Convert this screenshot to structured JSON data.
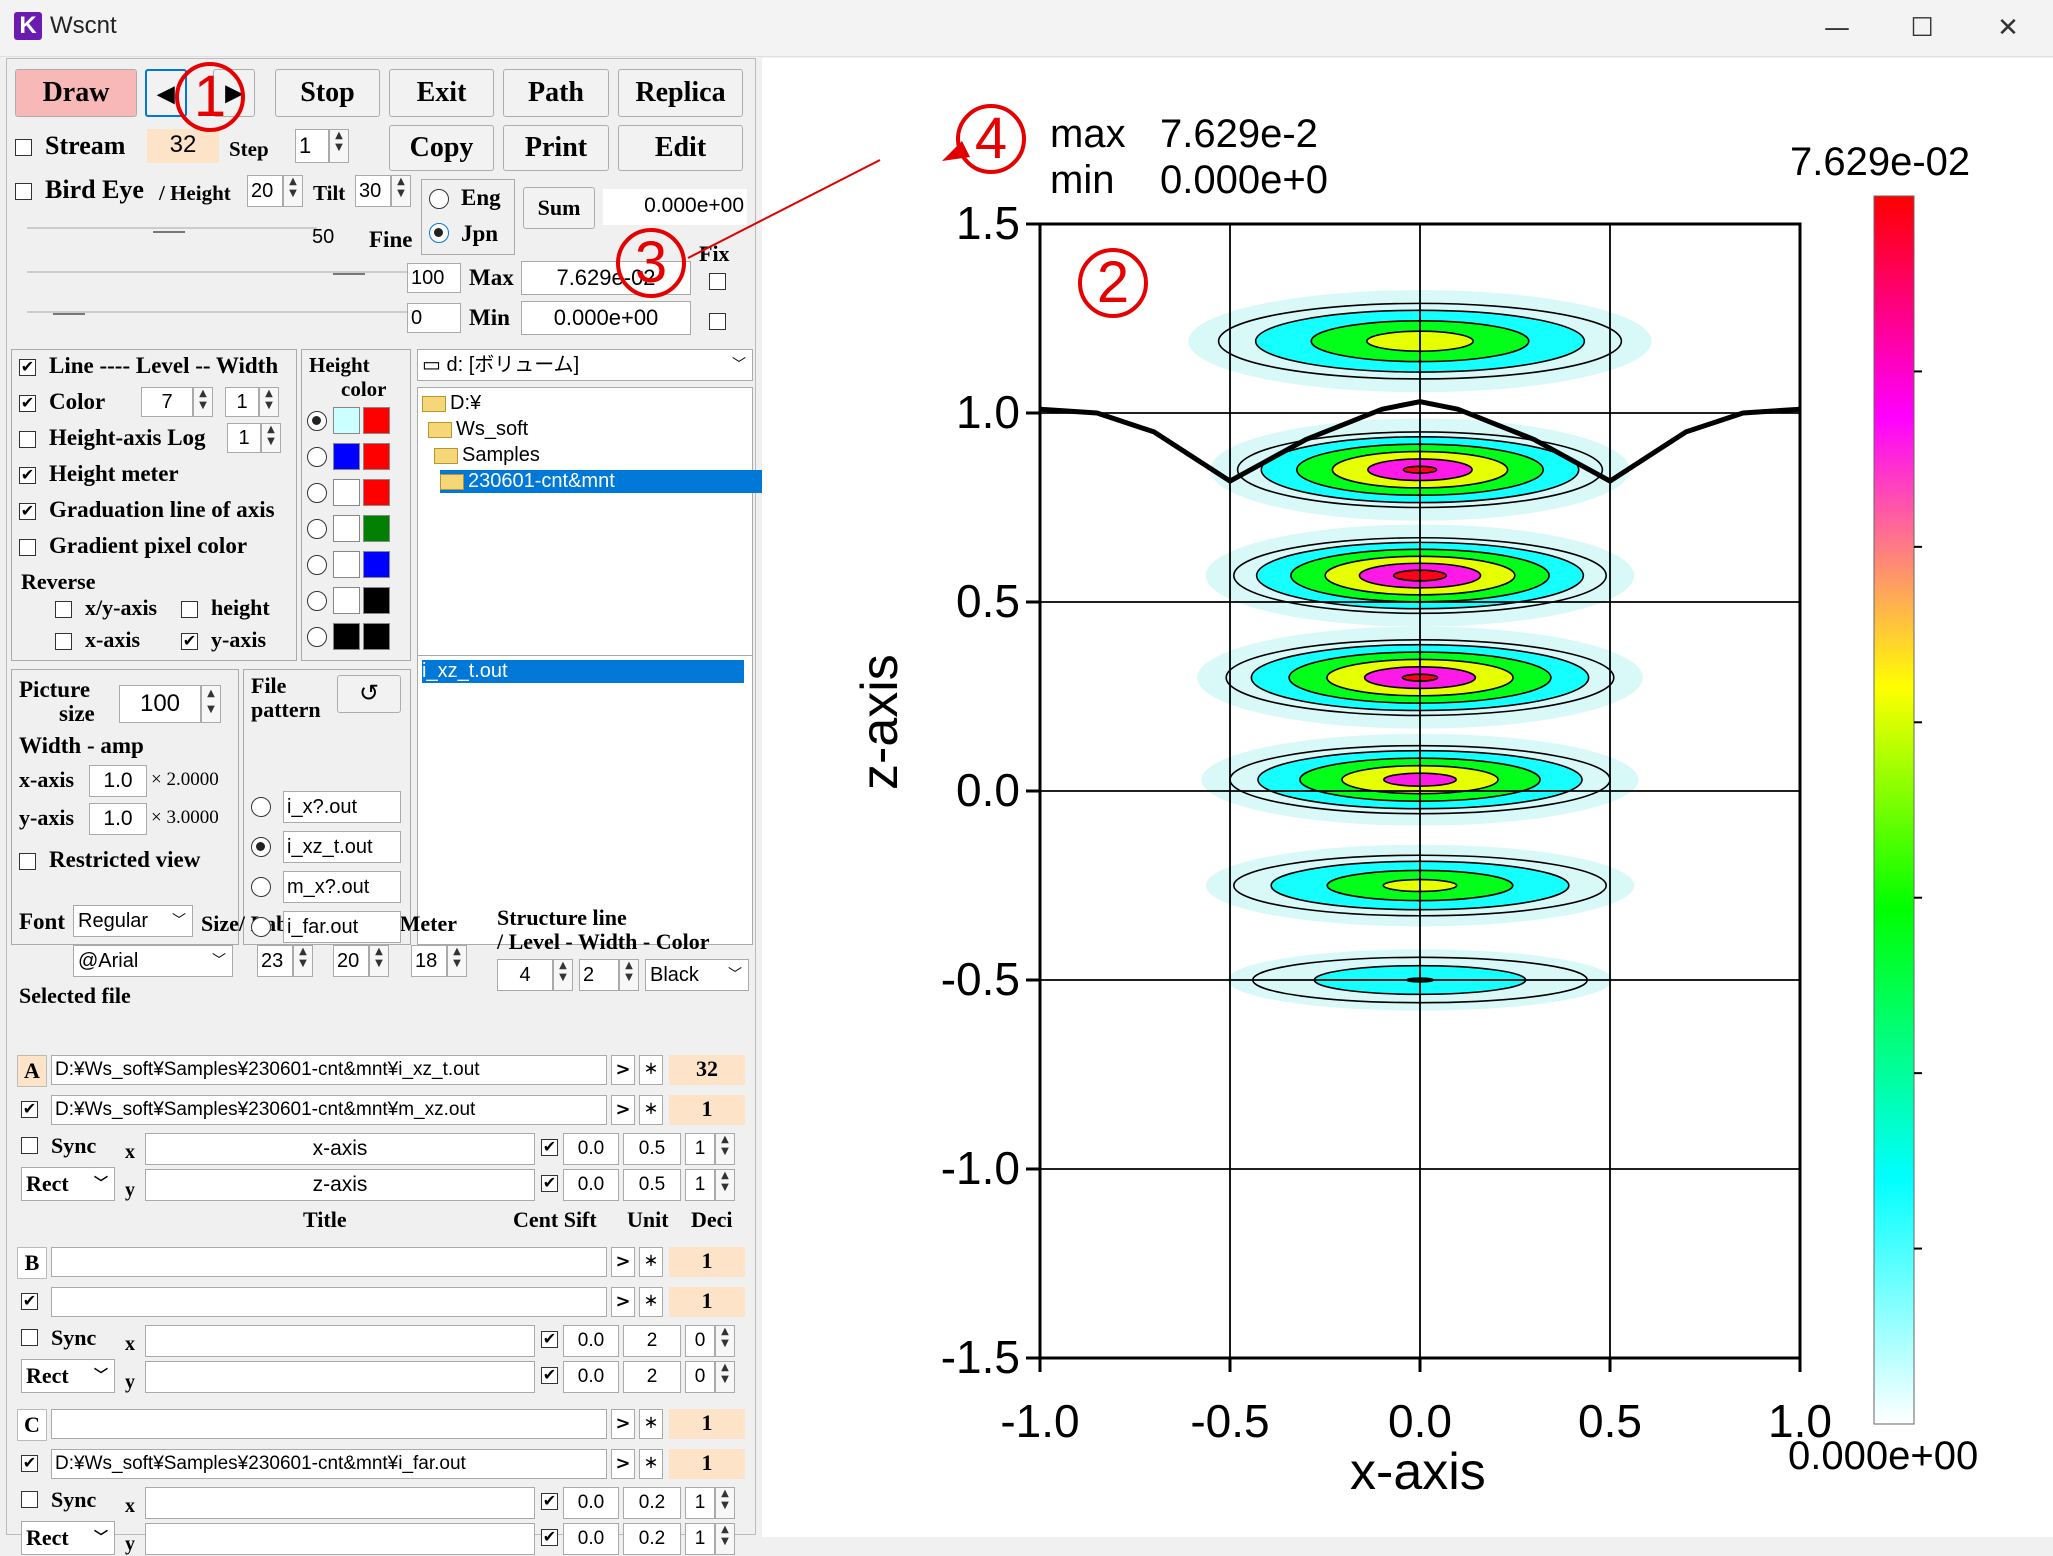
{
  "window": {
    "title": "Wscnt",
    "min": "—",
    "max": "☐",
    "close": "✕"
  },
  "toolbar": {
    "draw": "Draw",
    "prev": "◀",
    "next": "▶",
    "stop": "Stop",
    "exit": "Exit",
    "path": "Path",
    "replica": "Replica",
    "copy": "Copy",
    "print": "Print",
    "edit": "Edit",
    "play": "▶"
  },
  "controls": {
    "stream_label": "Stream",
    "stream_value": "32",
    "step_label": "Step",
    "step_value": "1",
    "birdeye_label": "Bird Eye",
    "height_label": "/ Height",
    "height_value": "20",
    "tilt_label": "Tilt",
    "tilt_value": "30",
    "eng": "Eng",
    "jpn": "Jpn",
    "sum_label": "Sum",
    "sum_value": "0.000e+00",
    "fine_value": "50",
    "fine_label": "Fine",
    "fix_label": "Fix",
    "max_num": "100",
    "max_label": "Max",
    "max_value": "7.629e-02",
    "min_num": "0",
    "min_label": "Min",
    "min_value": "0.000e+00"
  },
  "options": {
    "line": "Line ---- Level -- Width",
    "color": "Color",
    "color_level": "7",
    "color_width": "1",
    "height_log": "Height-axis Log",
    "height_log_value": "1",
    "height_meter": "Height meter",
    "graduation": "Graduation line of axis",
    "gradient": "Gradient pixel color",
    "reverse": "Reverse",
    "xy_axis": "x/y-axis",
    "height": "height",
    "x_axis": "x-axis",
    "y_axis": "y-axis",
    "height_color_title": "Height",
    "height_color_sub": "color"
  },
  "swatches": [
    {
      "a": "#ccffff",
      "b": "#ff0000"
    },
    {
      "a": "#0000ff",
      "b": "#ff0000"
    },
    {
      "a": "#ffffff",
      "b": "#ff0000"
    },
    {
      "a": "#ffffff",
      "b": "#008000"
    },
    {
      "a": "#ffffff",
      "b": "#0000ff"
    },
    {
      "a": "#ffffff",
      "b": "#000000"
    },
    {
      "a": "#000000",
      "b": "#000000"
    }
  ],
  "drive": "d: [ボリューム]",
  "folders": [
    "D:¥",
    "Ws_soft",
    "Samples",
    "230601-cnt&mnt"
  ],
  "files": [
    "i_xz_t.out"
  ],
  "picture": {
    "size_label": "Picture",
    "size_label2": "size",
    "size_value": "100",
    "width_amp": "Width - amp",
    "x_label": "x-axis",
    "x_value": "1.0",
    "x_mult": "× 2.0000",
    "y_label": "y-axis",
    "y_value": "1.0",
    "y_mult": "× 3.0000",
    "restricted": "Restricted view"
  },
  "pattern": {
    "label": "File",
    "label2": "pattern",
    "refresh": "↺",
    "items": [
      "i_x?.out",
      "i_xz_t.out",
      "m_x?.out",
      "i_far.out"
    ]
  },
  "font": {
    "label": "Font",
    "style": "Regular",
    "face": "@Arial",
    "size_label": "Size/ Label - Numb - Meter",
    "label_size": "23",
    "numb_size": "20",
    "meter_size": "18",
    "struct_label": "Structure line",
    "struct_label2": "/ Level - Width - Color",
    "level": "4",
    "width": "2",
    "color": "Black"
  },
  "selected": {
    "label": "Selected file",
    "title_hdr": "Title",
    "cent_sift": "Cent Sift",
    "unit": "Unit",
    "deci": "Deci"
  },
  "groups": [
    {
      "letter": "A",
      "file1": "D:¥Ws_soft¥Samples¥230601-cnt&mnt¥i_xz_t.out",
      "num1": "32",
      "file2": "D:¥Ws_soft¥Samples¥230601-cnt&mnt¥m_xz.out",
      "num2": "1",
      "sync": "Sync",
      "rect": "Rect",
      "x": "x",
      "y": "y",
      "xt": "x-axis",
      "yt": "z-axis",
      "xc": "0.0",
      "xu": "0.5",
      "xd": "1",
      "yc": "0.0",
      "yu": "0.5",
      "yd": "1"
    },
    {
      "letter": "B",
      "file1": "",
      "num1": "1",
      "file2": "",
      "num2": "1",
      "sync": "Sync",
      "rect": "Rect",
      "x": "x",
      "y": "y",
      "xt": "",
      "yt": "",
      "xc": "0.0",
      "xu": "2",
      "xd": "0",
      "yc": "0.0",
      "yu": "2",
      "yd": "0"
    },
    {
      "letter": "C",
      "file1": "",
      "num1": "1",
      "file2": "D:¥Ws_soft¥Samples¥230601-cnt&mnt¥i_far.out",
      "num2": "1",
      "sync": "Sync",
      "rect": "Rect",
      "x": "x",
      "y": "y",
      "xt": "",
      "yt": "",
      "xc": "0.0",
      "xu": "0.2",
      "xd": "1",
      "yc": "0.0",
      "yu": "0.2",
      "yd": "1"
    }
  ],
  "gt": ">",
  "star": "＊",
  "plot": {
    "max_label": "max",
    "max_value": "7.629e-2",
    "min_label": "min",
    "min_value": "0.000e+0",
    "xlabel": "x-axis",
    "ylabel": "z-axis",
    "colorbar_top": "7.629e-02",
    "colorbar_bottom": "0.000e+00",
    "xticks": [
      "-1.0",
      "-0.5",
      "0.0",
      "0.5",
      "1.0"
    ],
    "yticks": [
      "1.5",
      "1.0",
      "0.5",
      "0.0",
      "-0.5",
      "-1.0",
      "-1.5"
    ]
  },
  "markers": [
    "1",
    "2",
    "3",
    "4"
  ],
  "chart_data": {
    "type": "heatmap",
    "xlabel": "x-axis",
    "ylabel": "z-axis",
    "xlim": [
      -1.0,
      1.0
    ],
    "ylim": [
      -1.5,
      1.5
    ],
    "grid": true,
    "colorbar": {
      "min": 0.0,
      "max": 0.07629,
      "colors": [
        "#ffffff",
        "#00ffff",
        "#00ff00",
        "#ffff00",
        "#ff00ff",
        "#ff0000"
      ]
    },
    "peaks": [
      {
        "x": 0.0,
        "z": 1.19,
        "amp": 0.6,
        "sx": 0.53,
        "sz": 0.1
      },
      {
        "x": 0.0,
        "z": 0.85,
        "amp": 0.85,
        "sx": 0.48,
        "sz": 0.1
      },
      {
        "x": 0.0,
        "z": 0.57,
        "amp": 0.9,
        "sx": 0.49,
        "sz": 0.1
      },
      {
        "x": 0.0,
        "z": 0.3,
        "amp": 0.85,
        "sx": 0.51,
        "sz": 0.1
      },
      {
        "x": 0.0,
        "z": 0.03,
        "amp": 0.75,
        "sx": 0.5,
        "sz": 0.09
      },
      {
        "x": 0.0,
        "z": -0.25,
        "amp": 0.55,
        "sx": 0.49,
        "sz": 0.08
      },
      {
        "x": 0.0,
        "z": -0.5,
        "amp": 0.3,
        "sx": 0.44,
        "sz": 0.06
      }
    ],
    "structure_line": [
      [
        -1.0,
        1.01
      ],
      [
        -0.85,
        1.0
      ],
      [
        -0.7,
        0.95
      ],
      [
        -0.5,
        0.82
      ],
      [
        -0.3,
        0.93
      ],
      [
        -0.1,
        1.01
      ],
      [
        0.0,
        1.03
      ],
      [
        0.1,
        1.01
      ],
      [
        0.3,
        0.93
      ],
      [
        0.5,
        0.82
      ],
      [
        0.7,
        0.95
      ],
      [
        0.85,
        1.0
      ],
      [
        1.0,
        1.01
      ]
    ]
  }
}
